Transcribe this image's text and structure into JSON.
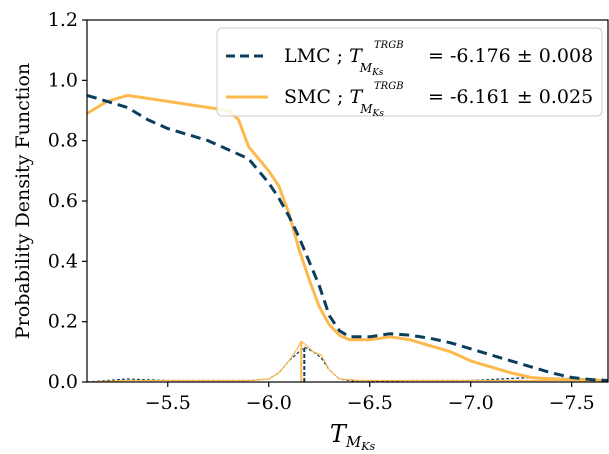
{
  "chart_data": {
    "type": "line",
    "xlabel": {
      "base": "T",
      "sub": "M",
      "subsub": "Ks"
    },
    "ylabel": "Probability Density Function",
    "xlim": [
      -5.1,
      -7.68
    ],
    "ylim": [
      0.0,
      1.2
    ],
    "x_ticks": [
      -5.5,
      -6.0,
      -6.5,
      -7.0,
      -7.5
    ],
    "x_tick_labels": [
      "−5.5",
      "−6.0",
      "−6.5",
      "−7.0",
      "−7.5"
    ],
    "y_ticks": [
      0.0,
      0.2,
      0.4,
      0.6,
      0.8,
      1.0,
      1.2
    ],
    "y_tick_labels": [
      "0.0",
      "0.2",
      "0.4",
      "0.6",
      "0.8",
      "1.0",
      "1.2"
    ],
    "legend_position": "top-right",
    "series": [
      {
        "name": "LMC",
        "legend_value": "= -6.176 ± 0.008",
        "color": "#0b3d5c",
        "style": "dashed",
        "trgb": -6.176,
        "x": [
          -5.1,
          -5.2,
          -5.3,
          -5.4,
          -5.5,
          -5.6,
          -5.7,
          -5.8,
          -5.9,
          -6.0,
          -6.05,
          -6.1,
          -6.15,
          -6.2,
          -6.25,
          -6.3,
          -6.35,
          -6.4,
          -6.5,
          -6.6,
          -6.7,
          -6.8,
          -6.9,
          -7.0,
          -7.1,
          -7.2,
          -7.3,
          -7.4,
          -7.5,
          -7.6,
          -7.68
        ],
        "values": [
          0.95,
          0.93,
          0.91,
          0.87,
          0.84,
          0.82,
          0.8,
          0.77,
          0.74,
          0.66,
          0.61,
          0.55,
          0.48,
          0.4,
          0.32,
          0.22,
          0.17,
          0.15,
          0.15,
          0.16,
          0.155,
          0.145,
          0.13,
          0.11,
          0.09,
          0.07,
          0.05,
          0.03,
          0.015,
          0.008,
          0.005
        ]
      },
      {
        "name": "SMC",
        "legend_value": "= -6.161 ± 0.025",
        "color": "#fdb94e",
        "style": "solid",
        "trgb": -6.161,
        "x": [
          -5.1,
          -5.2,
          -5.3,
          -5.4,
          -5.5,
          -5.6,
          -5.7,
          -5.8,
          -5.85,
          -5.9,
          -6.0,
          -6.05,
          -6.1,
          -6.15,
          -6.2,
          -6.25,
          -6.3,
          -6.35,
          -6.4,
          -6.5,
          -6.6,
          -6.7,
          -6.8,
          -6.9,
          -7.0,
          -7.1,
          -7.2,
          -7.3,
          -7.4,
          -7.5,
          -7.6,
          -7.68
        ],
        "values": [
          0.89,
          0.93,
          0.95,
          0.94,
          0.93,
          0.92,
          0.91,
          0.9,
          0.87,
          0.78,
          0.7,
          0.65,
          0.56,
          0.44,
          0.34,
          0.25,
          0.19,
          0.155,
          0.14,
          0.14,
          0.15,
          0.14,
          0.12,
          0.1,
          0.07,
          0.05,
          0.03,
          0.015,
          0.01,
          0.008,
          0.007,
          0.005
        ]
      }
    ],
    "edge_response": [
      {
        "series": "LMC",
        "color": "#0b3d5c",
        "style": "dashed",
        "x": [
          -5.1,
          -5.3,
          -5.5,
          -5.7,
          -5.9,
          -6.0,
          -6.05,
          -6.1,
          -6.15,
          -6.18,
          -6.22,
          -6.26,
          -6.3,
          -6.35,
          -6.45,
          -6.7,
          -7.0,
          -7.3,
          -7.6,
          -7.68
        ],
        "values": [
          0.0,
          0.01,
          0.005,
          0.005,
          0.005,
          0.01,
          0.03,
          0.07,
          0.1,
          0.115,
          0.1,
          0.08,
          0.04,
          0.01,
          0.0,
          0.005,
          0.005,
          0.015,
          0.01,
          0.005
        ]
      },
      {
        "series": "SMC",
        "color": "#fdb94e",
        "style": "solid",
        "x": [
          -5.1,
          -5.3,
          -5.5,
          -5.7,
          -5.9,
          -6.0,
          -6.05,
          -6.1,
          -6.14,
          -6.16,
          -6.19,
          -6.22,
          -6.26,
          -6.3,
          -6.35,
          -6.45,
          -6.7,
          -7.0,
          -7.3,
          -7.68
        ],
        "values": [
          0.0,
          0.005,
          0.005,
          0.005,
          0.005,
          0.01,
          0.03,
          0.07,
          0.11,
          0.135,
          0.12,
          0.1,
          0.09,
          0.04,
          0.01,
          0.005,
          0.005,
          0.005,
          0.005,
          0.005
        ]
      }
    ],
    "legend_symbol": {
      "base": "T",
      "sup": "TRGB",
      "sub": "M",
      "subsub": "Ks"
    }
  }
}
